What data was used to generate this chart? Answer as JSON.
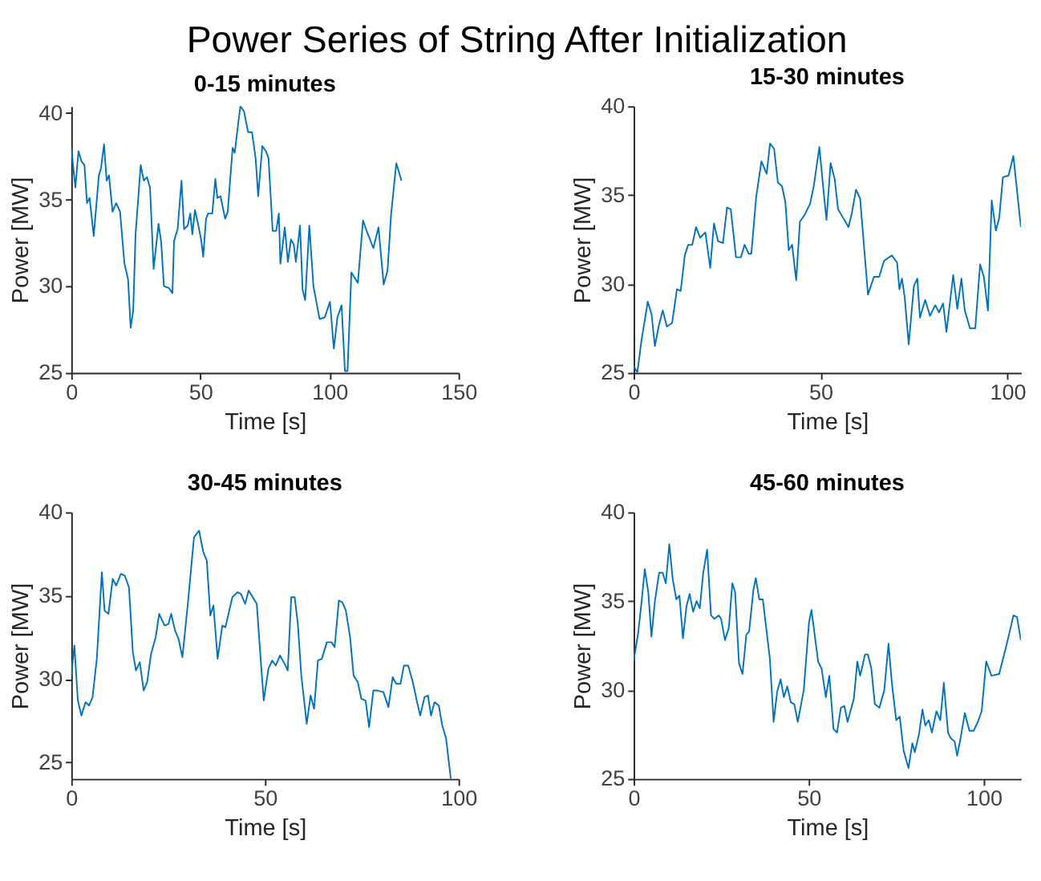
{
  "chart_data": [
    {
      "type": "line",
      "title": "0-15 minutes",
      "annotations": [
        "Power Series of String After Initialization"
      ],
      "xlabel": "Time [s]",
      "ylabel": "Power [MW]",
      "color": "#0072bd",
      "grid": false,
      "xlim": [
        0,
        150
      ],
      "xticks": [
        0,
        50,
        100,
        150
      ],
      "ylim": [
        25,
        40.4
      ],
      "yticks": [
        25,
        30,
        35,
        40
      ],
      "x": [
        0,
        1.6,
        2.8,
        4,
        5.1,
        6.1,
        7.1,
        8.7,
        10.7,
        11.5,
        12.7,
        13.7,
        14.6,
        16,
        17.4,
        18.9,
        20.6,
        22,
        23,
        24,
        24.9,
        26.9,
        28.1,
        29.3,
        30.5,
        31.9,
        33.8,
        34.8,
        35.9,
        37.8,
        39.2,
        39.8,
        41.2,
        42.7,
        43.7,
        45.1,
        46.1,
        46.9,
        47.9,
        49.1,
        50.3,
        51.1,
        52.2,
        53,
        54.6,
        55.8,
        56.6,
        57.8,
        59.6,
        60.6,
        62.5,
        63.3,
        64.5,
        65.5,
        66.9,
        68.5,
        70,
        71.4,
        72.4,
        74,
        75.4,
        76.4,
        78,
        79.4,
        80.4,
        81,
        82.7,
        83.9,
        85.1,
        86.2,
        87,
        88.6,
        89.6,
        90.6,
        92.2,
        93.8,
        96.2,
        98.2,
        100.2,
        101.7,
        103.1,
        104.7,
        106,
        107,
        108.5,
        111,
        113,
        114.4,
        117,
        119,
        121,
        122.5,
        123.9,
        125.9,
        127.9
      ],
      "values": [
        38.0,
        35.7,
        37.8,
        37.2,
        37.0,
        34.8,
        35.1,
        32.9,
        36.4,
        36.8,
        38.2,
        36.1,
        36.4,
        34.3,
        34.8,
        34.3,
        31.3,
        30.4,
        27.6,
        28.6,
        33.0,
        37.0,
        36.1,
        36.3,
        35.7,
        31.0,
        33.6,
        32.6,
        30.0,
        29.9,
        29.6,
        32.6,
        33.3,
        36.1,
        33.3,
        33.5,
        34.2,
        33.0,
        34.4,
        33.6,
        32.7,
        31.7,
        33.9,
        34.2,
        34.2,
        36.2,
        35.1,
        35.2,
        33.9,
        34.3,
        38.0,
        37.7,
        39.2,
        40.4,
        40.1,
        38.9,
        38.9,
        37.4,
        35.2,
        38.1,
        37.8,
        37.4,
        33.2,
        33.2,
        34.2,
        31.3,
        33.4,
        31.4,
        32.7,
        32.4,
        31.4,
        33.5,
        29.8,
        29.2,
        33.5,
        30.0,
        28.1,
        28.2,
        29.1,
        26.4,
        28.2,
        28.9,
        25.1,
        25.1,
        30.8,
        30.2,
        33.8,
        33.2,
        32.2,
        33.4,
        30.1,
        30.9,
        34.2,
        37.1,
        36.1
      ]
    },
    {
      "type": "line",
      "title": "15-30 minutes",
      "xlabel": "Time [s]",
      "ylabel": "Power [MW]",
      "color": "#0072bd",
      "grid": false,
      "xlim": [
        0,
        103.6
      ],
      "xticks": [
        0,
        50,
        100
      ],
      "ylim": [
        25,
        40
      ],
      "yticks": [
        25,
        30,
        35,
        40
      ],
      "x": [
        0,
        1,
        2.1,
        3.8,
        4.8,
        5.7,
        6.8,
        7.8,
        8.9,
        10.3,
        11.6,
        12.6,
        13.7,
        14.6,
        15.7,
        16.7,
        17.8,
        19.2,
        20.5,
        21.5,
        22.6,
        23.9,
        25,
        26,
        27.4,
        28.7,
        29.7,
        30.8,
        31.5,
        32.8,
        34.2,
        35.6,
        36.5,
        37.6,
        38.6,
        39.7,
        40.6,
        41.5,
        42.4,
        43.5,
        44.5,
        45.8,
        47.2,
        48.2,
        49.7,
        50.6,
        51.6,
        52.7,
        53.8,
        54.7,
        56.1,
        57.5,
        58.4,
        59.5,
        60.6,
        62.7,
        64.3,
        65.7,
        67,
        69.1,
        70.5,
        71.1,
        71.8,
        72.5,
        73.6,
        75,
        75.9,
        76.6,
        78,
        79.3,
        80.7,
        81.7,
        82.8,
        83.7,
        85.5,
        86.6,
        87.7,
        88.6,
        90,
        91.4,
        92.7,
        93.7,
        94.8,
        95.8,
        96.9,
        97.8,
        98.8,
        100.3,
        101.6,
        103.6
      ],
      "values": [
        25.4,
        25.0,
        26.8,
        29.0,
        28.3,
        26.5,
        27.7,
        28.5,
        27.6,
        27.8,
        29.7,
        29.6,
        31.6,
        32.2,
        32.2,
        33.2,
        32.6,
        32.9,
        30.9,
        33.4,
        32.4,
        32.3,
        34.3,
        34.2,
        31.5,
        31.5,
        32.2,
        31.7,
        31.7,
        34.9,
        36.9,
        36.2,
        37.9,
        37.6,
        35.7,
        35.5,
        34.6,
        31.9,
        32.2,
        30.2,
        33.5,
        33.9,
        34.5,
        35.5,
        37.7,
        35.7,
        33.6,
        36.8,
        35.9,
        34.2,
        33.7,
        33.2,
        34.0,
        35.3,
        34.8,
        29.4,
        30.4,
        30.4,
        31.3,
        31.6,
        31.2,
        29.7,
        30.3,
        29.3,
        26.6,
        29.9,
        30.3,
        28.1,
        29.1,
        28.2,
        28.8,
        28.4,
        28.9,
        27.3,
        30.5,
        28.6,
        30.3,
        28.5,
        27.5,
        27.5,
        31.1,
        30.4,
        28.5,
        34.7,
        33.0,
        33.7,
        36.0,
        36.1,
        37.2,
        33.2
      ]
    },
    {
      "type": "line",
      "title": "30-45 minutes",
      "xlabel": "Time [s]",
      "ylabel": "Power [MW]",
      "color": "#0072bd",
      "grid": false,
      "xlim": [
        0,
        100
      ],
      "xticks": [
        0,
        50,
        100
      ],
      "ylim": [
        24,
        40
      ],
      "yticks": [
        25,
        30,
        35,
        40
      ],
      "x": [
        0,
        0.8,
        1.7,
        2.6,
        3.7,
        4.6,
        5.5,
        6.6,
        7.9,
        8.6,
        9.6,
        10.7,
        11.6,
        12.8,
        13.8,
        14.9,
        15.9,
        16.7,
        17.7,
        18.7,
        19.6,
        20.6,
        21.8,
        22.7,
        24.1,
        25.1,
        25.8,
        26.8,
        27.7,
        28.7,
        30.1,
        31.7,
        33,
        34.1,
        35,
        35.9,
        36.7,
        37.8,
        39,
        39.8,
        41.6,
        42.9,
        43.8,
        44.9,
        45.8,
        47.9,
        48.9,
        49.7,
        50.9,
        51.9,
        52.8,
        53.9,
        55.1,
        55.9,
        56.8,
        57.7,
        58.5,
        59.4,
        60.8,
        61.8,
        62.7,
        63.7,
        64.7,
        66,
        67.2,
        68,
        69.1,
        70,
        70.9,
        72,
        72.9,
        74,
        74.9,
        76,
        76.9,
        78,
        79,
        80.6,
        81.9,
        83,
        83.9,
        85,
        85.9,
        87,
        88.2,
        89.2,
        90.1,
        91.2,
        92.1,
        92.9,
        93.8,
        94.9,
        95.8,
        96.8,
        98
      ],
      "values": [
        30.2,
        32.0,
        28.7,
        27.8,
        28.6,
        28.4,
        28.9,
        31.2,
        36.4,
        34.1,
        33.9,
        36.0,
        35.6,
        36.3,
        36.2,
        35.5,
        31.6,
        30.5,
        31.0,
        29.3,
        29.8,
        31.5,
        32.5,
        33.9,
        33.2,
        33.3,
        33.9,
        32.9,
        32.4,
        31.3,
        34.5,
        38.5,
        38.9,
        37.6,
        37.1,
        33.8,
        34.4,
        31.2,
        33.2,
        33.1,
        34.9,
        35.2,
        35.1,
        34.5,
        35.3,
        34.5,
        31.2,
        28.7,
        30.6,
        31.1,
        30.8,
        31.4,
        30.9,
        30.5,
        34.9,
        34.9,
        33.3,
        30.2,
        27.3,
        29.0,
        28.2,
        31.1,
        31.2,
        32.2,
        32.2,
        31.9,
        34.7,
        34.6,
        34.1,
        32.5,
        30.2,
        29.8,
        28.8,
        28.7,
        27.1,
        29.3,
        29.3,
        29.2,
        28.3,
        30.1,
        29.7,
        29.7,
        30.8,
        30.8,
        29.8,
        28.7,
        27.8,
        28.9,
        29.0,
        27.8,
        28.6,
        28.4,
        27.2,
        26.4,
        24.0
      ]
    },
    {
      "type": "line",
      "title": "45-60 minutes",
      "xlabel": "Time [s]",
      "ylabel": "Power [MW]",
      "color": "#0072bd",
      "grid": false,
      "xlim": [
        0,
        110.6
      ],
      "xticks": [
        0,
        50,
        100
      ],
      "ylim": [
        25,
        40
      ],
      "yticks": [
        25,
        30,
        35,
        40
      ],
      "x": [
        0,
        1.3,
        2.2,
        3.2,
        4.2,
        5.1,
        6.1,
        7.3,
        8.3,
        9.2,
        10.2,
        11.2,
        12.2,
        13.1,
        14.1,
        15.1,
        16,
        17,
        18,
        18.9,
        19.9,
        21,
        22.1,
        23.1,
        24.3,
        25,
        26.1,
        27.2,
        28.2,
        29,
        30.1,
        31.1,
        32.2,
        33,
        34.2,
        34.9,
        35.9,
        36.9,
        38.9,
        40,
        41,
        42,
        42.9,
        43.9,
        44.9,
        45.9,
        46.9,
        48.6,
        50.1,
        50.8,
        52.7,
        53.7,
        54.9,
        55.9,
        57.1,
        58.1,
        59.2,
        60.2,
        61.1,
        62.9,
        63.9,
        64.7,
        66.1,
        66.9,
        67.9,
        68.9,
        70.2,
        71.6,
        72.8,
        73.8,
        75,
        76,
        77.1,
        78.5,
        79.6,
        80.3,
        81.5,
        82.5,
        83.3,
        84.3,
        85.2,
        86.5,
        87.6,
        88.6,
        89.8,
        90.5,
        91.7,
        92.4,
        93.4,
        94.6,
        95.9,
        97.1,
        98.3,
        99.4,
        100.7,
        102.2,
        104.4,
        106.6,
        108.5,
        109.5,
        110.6
      ],
      "values": [
        31.6,
        33.2,
        34.8,
        36.8,
        35.5,
        33.0,
        35.0,
        36.6,
        36.6,
        36.0,
        38.2,
        36.2,
        35.1,
        35.3,
        32.9,
        34.7,
        35.4,
        34.4,
        35.0,
        34.6,
        36.6,
        37.9,
        34.2,
        34.0,
        34.2,
        34.0,
        32.8,
        33.5,
        36.0,
        35.5,
        31.5,
        30.9,
        33.1,
        33.3,
        35.6,
        36.3,
        35.1,
        35.1,
        31.8,
        28.2,
        29.9,
        30.6,
        29.6,
        30.2,
        29.3,
        29.2,
        28.2,
        30.0,
        33.8,
        34.5,
        31.6,
        31.2,
        29.6,
        30.8,
        27.8,
        27.6,
        29.0,
        29.1,
        28.2,
        29.5,
        31.6,
        30.8,
        32.0,
        32.0,
        31.2,
        29.2,
        29.0,
        30.0,
        32.6,
        30.3,
        28.3,
        28.5,
        26.6,
        25.6,
        27.0,
        26.5,
        27.5,
        28.9,
        28.0,
        28.3,
        27.6,
        28.8,
        28.3,
        30.4,
        27.6,
        27.3,
        27.1,
        26.3,
        27.3,
        28.7,
        27.7,
        27.7,
        28.2,
        28.8,
        31.6,
        30.8,
        30.9,
        32.6,
        34.2,
        34.1,
        32.8
      ]
    }
  ]
}
